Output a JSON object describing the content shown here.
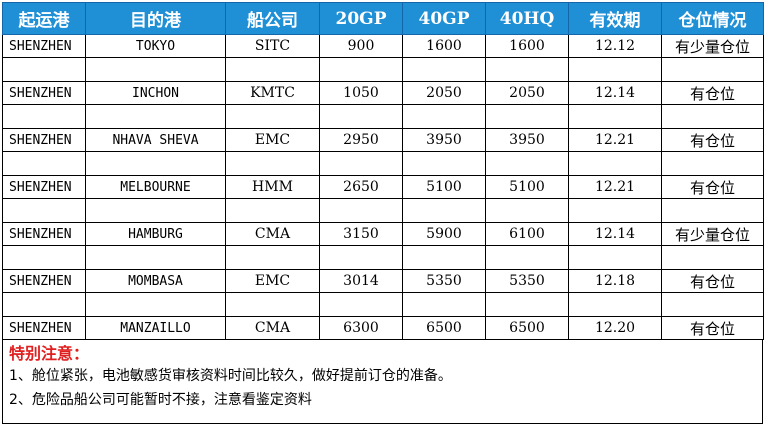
{
  "headers": [
    "起运港",
    "目的港",
    "船公司",
    "20GP",
    "40GP",
    "40HQ",
    "有效期",
    "仓位情况"
  ],
  "rows": [
    {
      "pol": "SHENZHEN",
      "pod": "TOKYO",
      "carrier": "SITC",
      "gp20": "900",
      "gp40": "1600",
      "hq40": "1600",
      "validity": "12.12",
      "status": "有少量仓位"
    },
    {
      "pol": "SHENZHEN",
      "pod": "INCHON",
      "carrier": "KMTC",
      "gp20": "1050",
      "gp40": "2050",
      "hq40": "2050",
      "validity": "12.14",
      "status": "有仓位"
    },
    {
      "pol": "SHENZHEN",
      "pod": "NHAVA SHEVA",
      "carrier": "EMC",
      "gp20": "2950",
      "gp40": "3950",
      "hq40": "3950",
      "validity": "12.21",
      "status": "有仓位"
    },
    {
      "pol": "SHENZHEN",
      "pod": "MELBOURNE",
      "carrier": "HMM",
      "gp20": "2650",
      "gp40": "5100",
      "hq40": "5100",
      "validity": "12.21",
      "status": "有仓位"
    },
    {
      "pol": "SHENZHEN",
      "pod": "HAMBURG",
      "carrier": "CMA",
      "gp20": "3150",
      "gp40": "5900",
      "hq40": "6100",
      "validity": "12.14",
      "status": "有少量仓位"
    },
    {
      "pol": "SHENZHEN",
      "pod": "MOMBASA",
      "carrier": "EMC",
      "gp20": "3014",
      "gp40": "5350",
      "hq40": "5350",
      "validity": "12.18",
      "status": "有仓位"
    },
    {
      "pol": "SHENZHEN",
      "pod": "MANZAILLO",
      "carrier": "CMA",
      "gp20": "6300",
      "gp40": "6500",
      "hq40": "6500",
      "validity": "12.20",
      "status": "有仓位"
    }
  ],
  "notes": {
    "title": "特别注意：",
    "lines": [
      "1、舱位紧张，电池敏感货审核资料时间比较久，做好提前订仓的准备。",
      "2、危险品船公司可能暂时不接，注意看鉴定资料"
    ]
  },
  "colors": {
    "header_bg": "#1f8fd6",
    "header_text": "#ffffff",
    "note_title": "#e02020"
  }
}
